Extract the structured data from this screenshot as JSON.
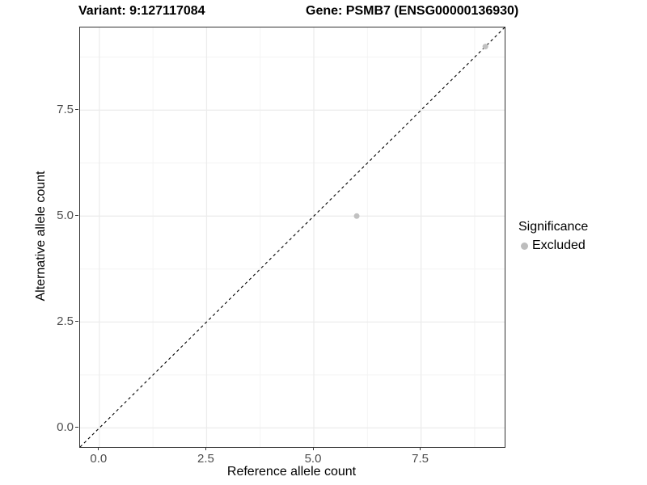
{
  "figure": {
    "title_left": "Variant: 9:127117084",
    "title_right": "Gene: PSMB7 (ENSG00000136930)"
  },
  "chart_data": {
    "type": "scatter",
    "title": "Variant: 9:127117084   Gene: PSMB7 (ENSG00000136930)",
    "xlabel": "Reference allele count",
    "ylabel": "Alternative allele count",
    "xlim": [
      -0.45,
      9.45
    ],
    "ylim": [
      -0.45,
      9.45
    ],
    "x_ticks": [
      0.0,
      2.5,
      5.0,
      7.5
    ],
    "y_ticks": [
      0.0,
      2.5,
      5.0,
      7.5
    ],
    "x_tick_labels": [
      "0.0",
      "2.5",
      "5.0",
      "7.5"
    ],
    "y_tick_labels": [
      "0.0",
      "2.5",
      "5.0",
      "7.5"
    ],
    "x_minor_ticks": [
      1.25,
      3.75,
      6.25,
      8.75
    ],
    "y_minor_ticks": [
      1.25,
      3.75,
      6.25,
      8.75
    ],
    "grid": true,
    "reference_line": {
      "type": "identity",
      "style": "dashed",
      "color": "#000000"
    },
    "series": [
      {
        "name": "Excluded",
        "color": "#c1c1c1",
        "marker": "circle",
        "points": [
          {
            "x": 6.0,
            "y": 5.0
          },
          {
            "x": 9.0,
            "y": 9.0
          }
        ]
      }
    ],
    "legend": {
      "title": "Significance",
      "position": "right",
      "items": [
        {
          "label": "Excluded",
          "color": "#bdbdbd"
        }
      ]
    }
  },
  "style_colors": {
    "panel_border": "#333333",
    "grid_major": "#ececec",
    "grid_minor": "#f4f4f4",
    "tick_color": "#333333",
    "tick_label_color": "#4d4d4d",
    "point_color": "#c1c1c1",
    "legend_key_color": "#bdbdbd",
    "reference_line_color": "#000000"
  }
}
